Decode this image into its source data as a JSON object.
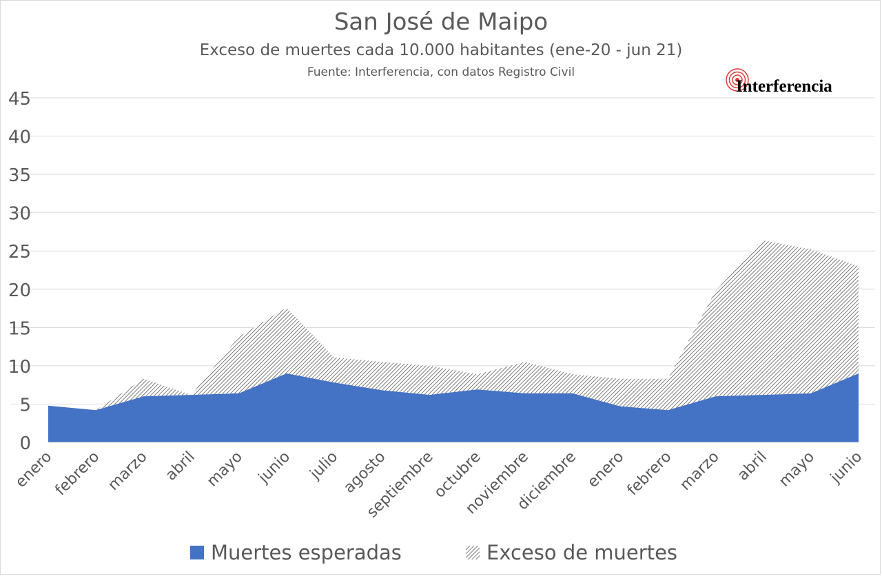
{
  "chart_data": {
    "type": "area",
    "stacked": true,
    "title": "San José de Maipo",
    "subtitle": "Exceso de muertes cada 10.000 habitantes (ene-20  - jun 21)",
    "source": "Fuente: Interferencia, con datos Registro Civil",
    "categories": [
      "enero",
      "febrero",
      "marzo",
      "abril",
      "mayo",
      "junio",
      "julio",
      "agosto",
      "septiembre",
      "octubre",
      "noviembre",
      "diciembre",
      "enero",
      "febrero",
      "marzo",
      "abril",
      "mayo",
      "junio"
    ],
    "series": [
      {
        "name": "Muertes esperadas",
        "values": [
          4.8,
          4.2,
          6.0,
          6.2,
          6.4,
          9.0,
          7.8,
          6.8,
          6.2,
          6.9,
          6.4,
          6.4,
          4.7,
          4.2,
          6.0,
          6.2,
          6.4,
          9.0
        ],
        "color": "#4472c4"
      },
      {
        "name": "Exceso de muertes",
        "values": [
          0.0,
          0.0,
          2.3,
          0.0,
          7.4,
          8.6,
          3.3,
          3.7,
          3.8,
          2.0,
          4.1,
          2.5,
          3.6,
          4.1,
          13.8,
          20.2,
          18.8,
          14.0
        ],
        "color": "#7f7f7f",
        "pattern": "hatch"
      }
    ],
    "ylim": [
      0,
      45
    ],
    "yticks": [
      "0",
      "5",
      "10",
      "15",
      "20",
      "25",
      "30",
      "35",
      "40",
      "45"
    ],
    "grid": true,
    "legend_position": "bottom"
  },
  "logo": {
    "text": "Interferencia"
  }
}
